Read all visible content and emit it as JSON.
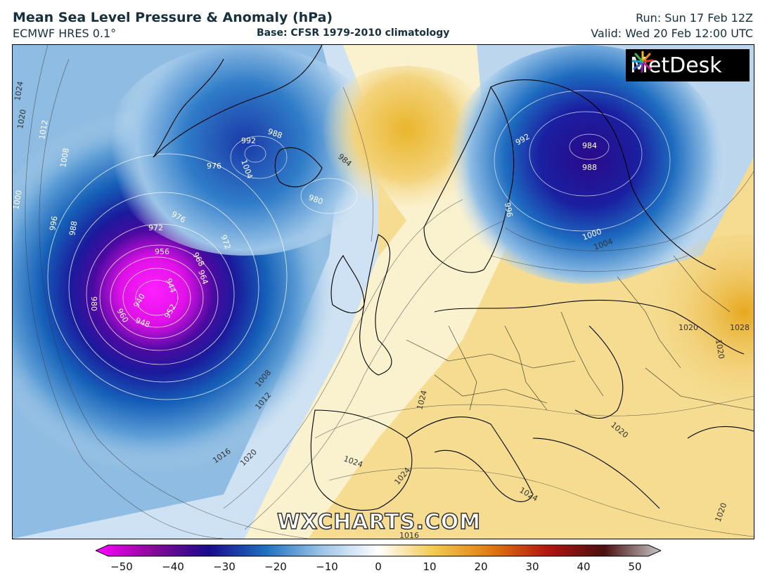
{
  "header": {
    "title": "Mean Sea Level Pressure & Anomaly (hPa)",
    "subtitle": "ECMWF HRES 0.1°",
    "base": "Base: CFSR 1979-2010 climatology",
    "run": "Run: Sun 17 Feb 12Z",
    "valid": "Valid: Wed 20 Feb 12:00 UTC"
  },
  "logo": {
    "text": "MetDesk",
    "icon": "metdesk-burst-icon"
  },
  "watermark": "WXCHARTS.COM",
  "colorbar": {
    "ticks": [
      "−50",
      "−40",
      "−30",
      "−20",
      "−10",
      "0",
      "10",
      "20",
      "30",
      "40",
      "50"
    ],
    "colors": {
      "min": "#ff00ff",
      "low": "#3a0a8c",
      "blue": "#1e6fc0",
      "zero": "#ffffff",
      "yellow": "#f2c94c",
      "orange": "#e07a10",
      "red": "#b3140f",
      "max": "#c8c8c8"
    }
  },
  "contour_labels": [
    "1024",
    "1020",
    "1012",
    "1000",
    "1008",
    "996",
    "988",
    "980",
    "976",
    "972",
    "992",
    "1004",
    "988",
    "984",
    "980",
    "976",
    "972",
    "956",
    "968",
    "964",
    "944",
    "940",
    "948",
    "960",
    "952",
    "992",
    "996",
    "984",
    "988",
    "1000",
    "1004",
    "1008",
    "1012",
    "1016",
    "1020",
    "1024",
    "1024",
    "1024",
    "1020",
    "1020",
    "1028",
    "1020",
    "1020",
    "1016",
    "1024"
  ]
}
